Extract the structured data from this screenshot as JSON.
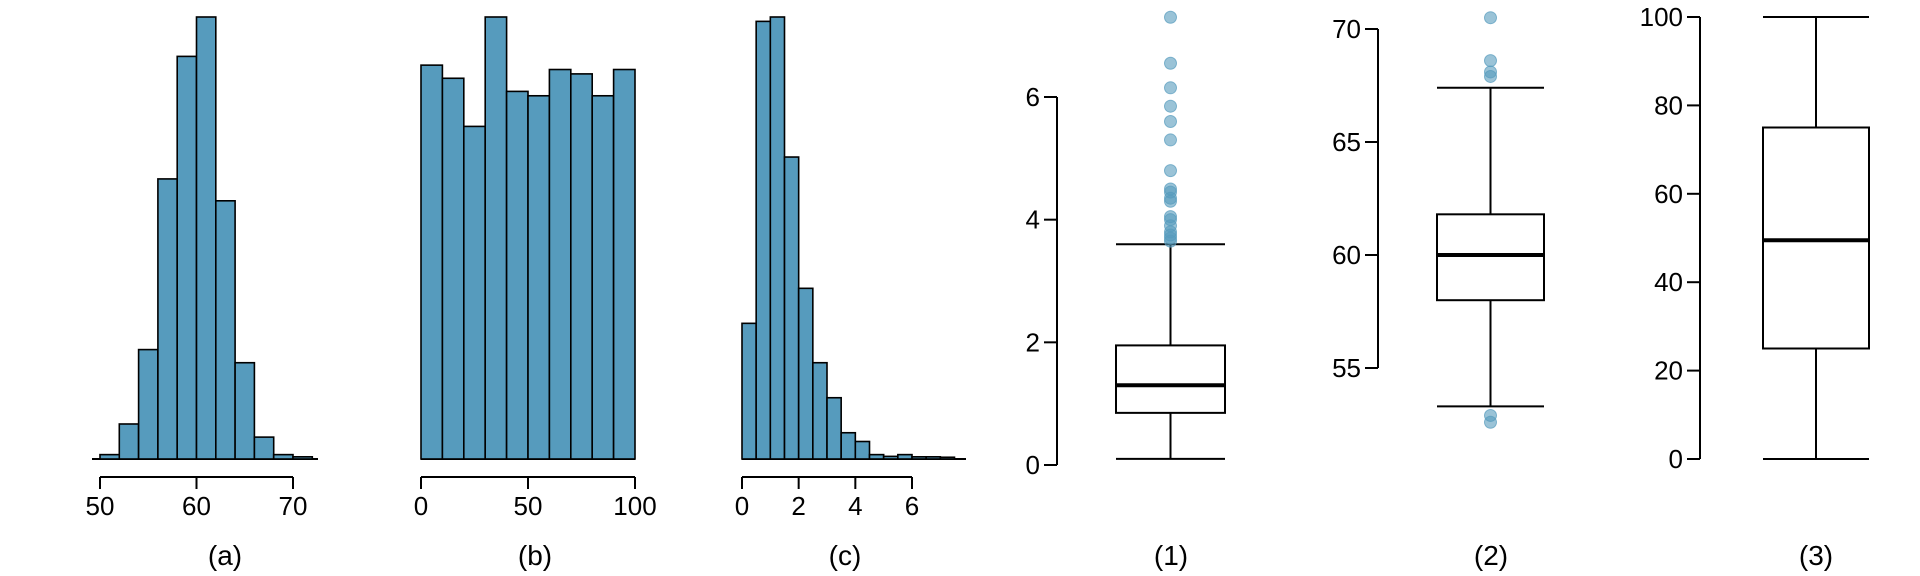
{
  "colors": {
    "bar_fill": "#569bbd",
    "bar_stroke": "#000000",
    "outlier": "#569bbd",
    "axis": "#000000",
    "background": "#ffffff"
  },
  "chart_data": [
    {
      "type": "bar",
      "subtype": "histogram",
      "panel_label": "(a)",
      "title": "",
      "xlabel": "",
      "ylabel": "",
      "bin_edges": [
        50,
        52,
        54,
        56,
        58,
        60,
        62,
        64,
        66,
        68,
        70,
        72
      ],
      "counts": [
        1,
        8,
        25,
        64,
        92,
        101,
        59,
        22,
        5,
        1,
        0.5
      ],
      "xlim": [
        50,
        72
      ],
      "ylim": [
        0,
        101
      ],
      "xticks": [
        50,
        60,
        70
      ],
      "y_axis_shown": false,
      "grid": false
    },
    {
      "type": "bar",
      "subtype": "histogram",
      "panel_label": "(b)",
      "title": "",
      "xlabel": "",
      "ylabel": "",
      "bin_edges": [
        0,
        10,
        20,
        30,
        40,
        50,
        60,
        70,
        80,
        90,
        100
      ],
      "counts": [
        90,
        87,
        76,
        101,
        84,
        83,
        89,
        88,
        83,
        89
      ],
      "xlim": [
        0,
        100
      ],
      "ylim": [
        0,
        101
      ],
      "xticks": [
        0,
        50,
        100
      ],
      "y_axis_shown": false,
      "grid": false
    },
    {
      "type": "bar",
      "subtype": "histogram",
      "panel_label": "(c)",
      "title": "",
      "xlabel": "",
      "ylabel": "",
      "bin_edges": [
        0,
        0.5,
        1,
        1.5,
        2,
        2.5,
        3,
        3.5,
        4,
        4.5,
        5,
        5.5,
        6,
        6.5,
        7,
        7.5
      ],
      "counts": [
        31,
        100,
        101,
        69,
        39,
        22,
        14,
        6,
        4,
        1,
        0.6,
        1,
        0.5,
        0.5,
        0.4
      ],
      "xlim": [
        0,
        7.7
      ],
      "ylim": [
        0,
        101
      ],
      "xticks": [
        0,
        2,
        4,
        6
      ],
      "y_axis_shown": false,
      "grid": false
    },
    {
      "type": "box",
      "panel_label": "(1)",
      "title": "",
      "xlabel": "",
      "ylabel": "",
      "ylim": [
        0,
        7.3
      ],
      "yticks": [
        0,
        2,
        4,
        6
      ],
      "whisker_low": 0.1,
      "q1": 0.85,
      "median": 1.3,
      "q3": 1.95,
      "whisker_high": 3.6,
      "outliers": [
        3.65,
        3.7,
        3.75,
        3.8,
        3.9,
        4.0,
        4.05,
        4.3,
        4.35,
        4.45,
        4.5,
        4.8,
        5.3,
        5.6,
        5.85,
        6.15,
        6.55,
        7.3
      ],
      "grid": false
    },
    {
      "type": "box",
      "panel_label": "(2)",
      "title": "",
      "xlabel": "",
      "ylabel": "",
      "ylim": [
        53.9,
        70.5
      ],
      "yticks": [
        55,
        60,
        65,
        70
      ],
      "whisker_low": 53.3,
      "q1": 58.0,
      "median": 60.0,
      "q3": 61.8,
      "whisker_high": 67.4,
      "outliers": [
        52.6,
        52.9,
        67.9,
        68.1,
        68.6,
        70.5
      ],
      "grid": false
    },
    {
      "type": "box",
      "panel_label": "(3)",
      "title": "",
      "xlabel": "",
      "ylabel": "",
      "ylim": [
        0,
        100
      ],
      "yticks": [
        0,
        20,
        40,
        60,
        80,
        100
      ],
      "whisker_low": 0,
      "q1": 25,
      "median": 49.5,
      "q3": 75,
      "whisker_high": 100,
      "outliers": [],
      "grid": false
    }
  ]
}
